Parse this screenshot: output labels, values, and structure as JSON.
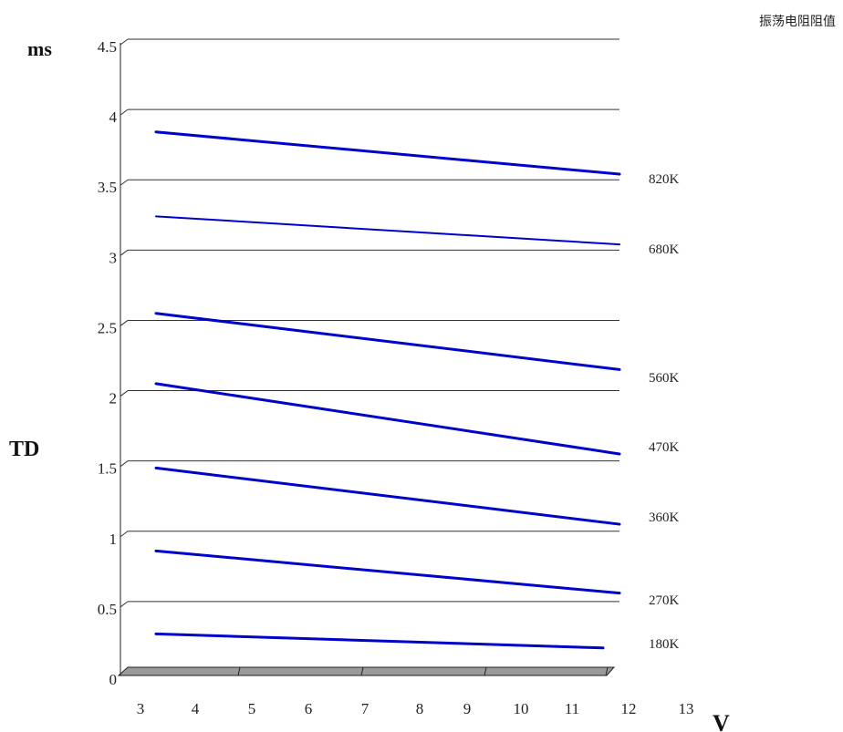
{
  "chart_data": {
    "type": "line",
    "title": "",
    "legend_title": "振荡电阻阻值",
    "ylabel_unit": "ms",
    "ylabel": "TD",
    "xlabel": "V",
    "ylim": [
      0,
      4.5
    ],
    "y_ticks": [
      "0",
      "0.5",
      "1",
      "1.5",
      "2",
      "2.5",
      "3",
      "3.5",
      "4",
      "4.5"
    ],
    "y_tick_values": [
      0,
      0.5,
      1,
      1.5,
      2,
      2.5,
      3,
      3.5,
      4,
      4.5
    ],
    "x_ticks": [
      "3",
      "4",
      "5",
      "6",
      "7",
      "8",
      "9",
      "10",
      "11",
      "12",
      "13"
    ],
    "grid": true,
    "legend_placement": "right",
    "line_color": "#0000cc",
    "series": [
      {
        "name": "820K",
        "x": [
          3,
          12
        ],
        "y": [
          3.84,
          3.54
        ]
      },
      {
        "name": "680K",
        "x": [
          3,
          12
        ],
        "y": [
          3.24,
          3.04
        ]
      },
      {
        "name": "560K",
        "x": [
          3,
          12
        ],
        "y": [
          2.55,
          2.15
        ]
      },
      {
        "name": "470K",
        "x": [
          3,
          12
        ],
        "y": [
          2.05,
          1.55
        ]
      },
      {
        "name": "360K",
        "x": [
          3,
          12
        ],
        "y": [
          1.45,
          1.05
        ]
      },
      {
        "name": "270K",
        "x": [
          3,
          12
        ],
        "y": [
          0.86,
          0.56
        ]
      },
      {
        "name": "180K",
        "x": [
          3,
          12
        ],
        "y": [
          0.27,
          0.17
        ]
      }
    ]
  }
}
